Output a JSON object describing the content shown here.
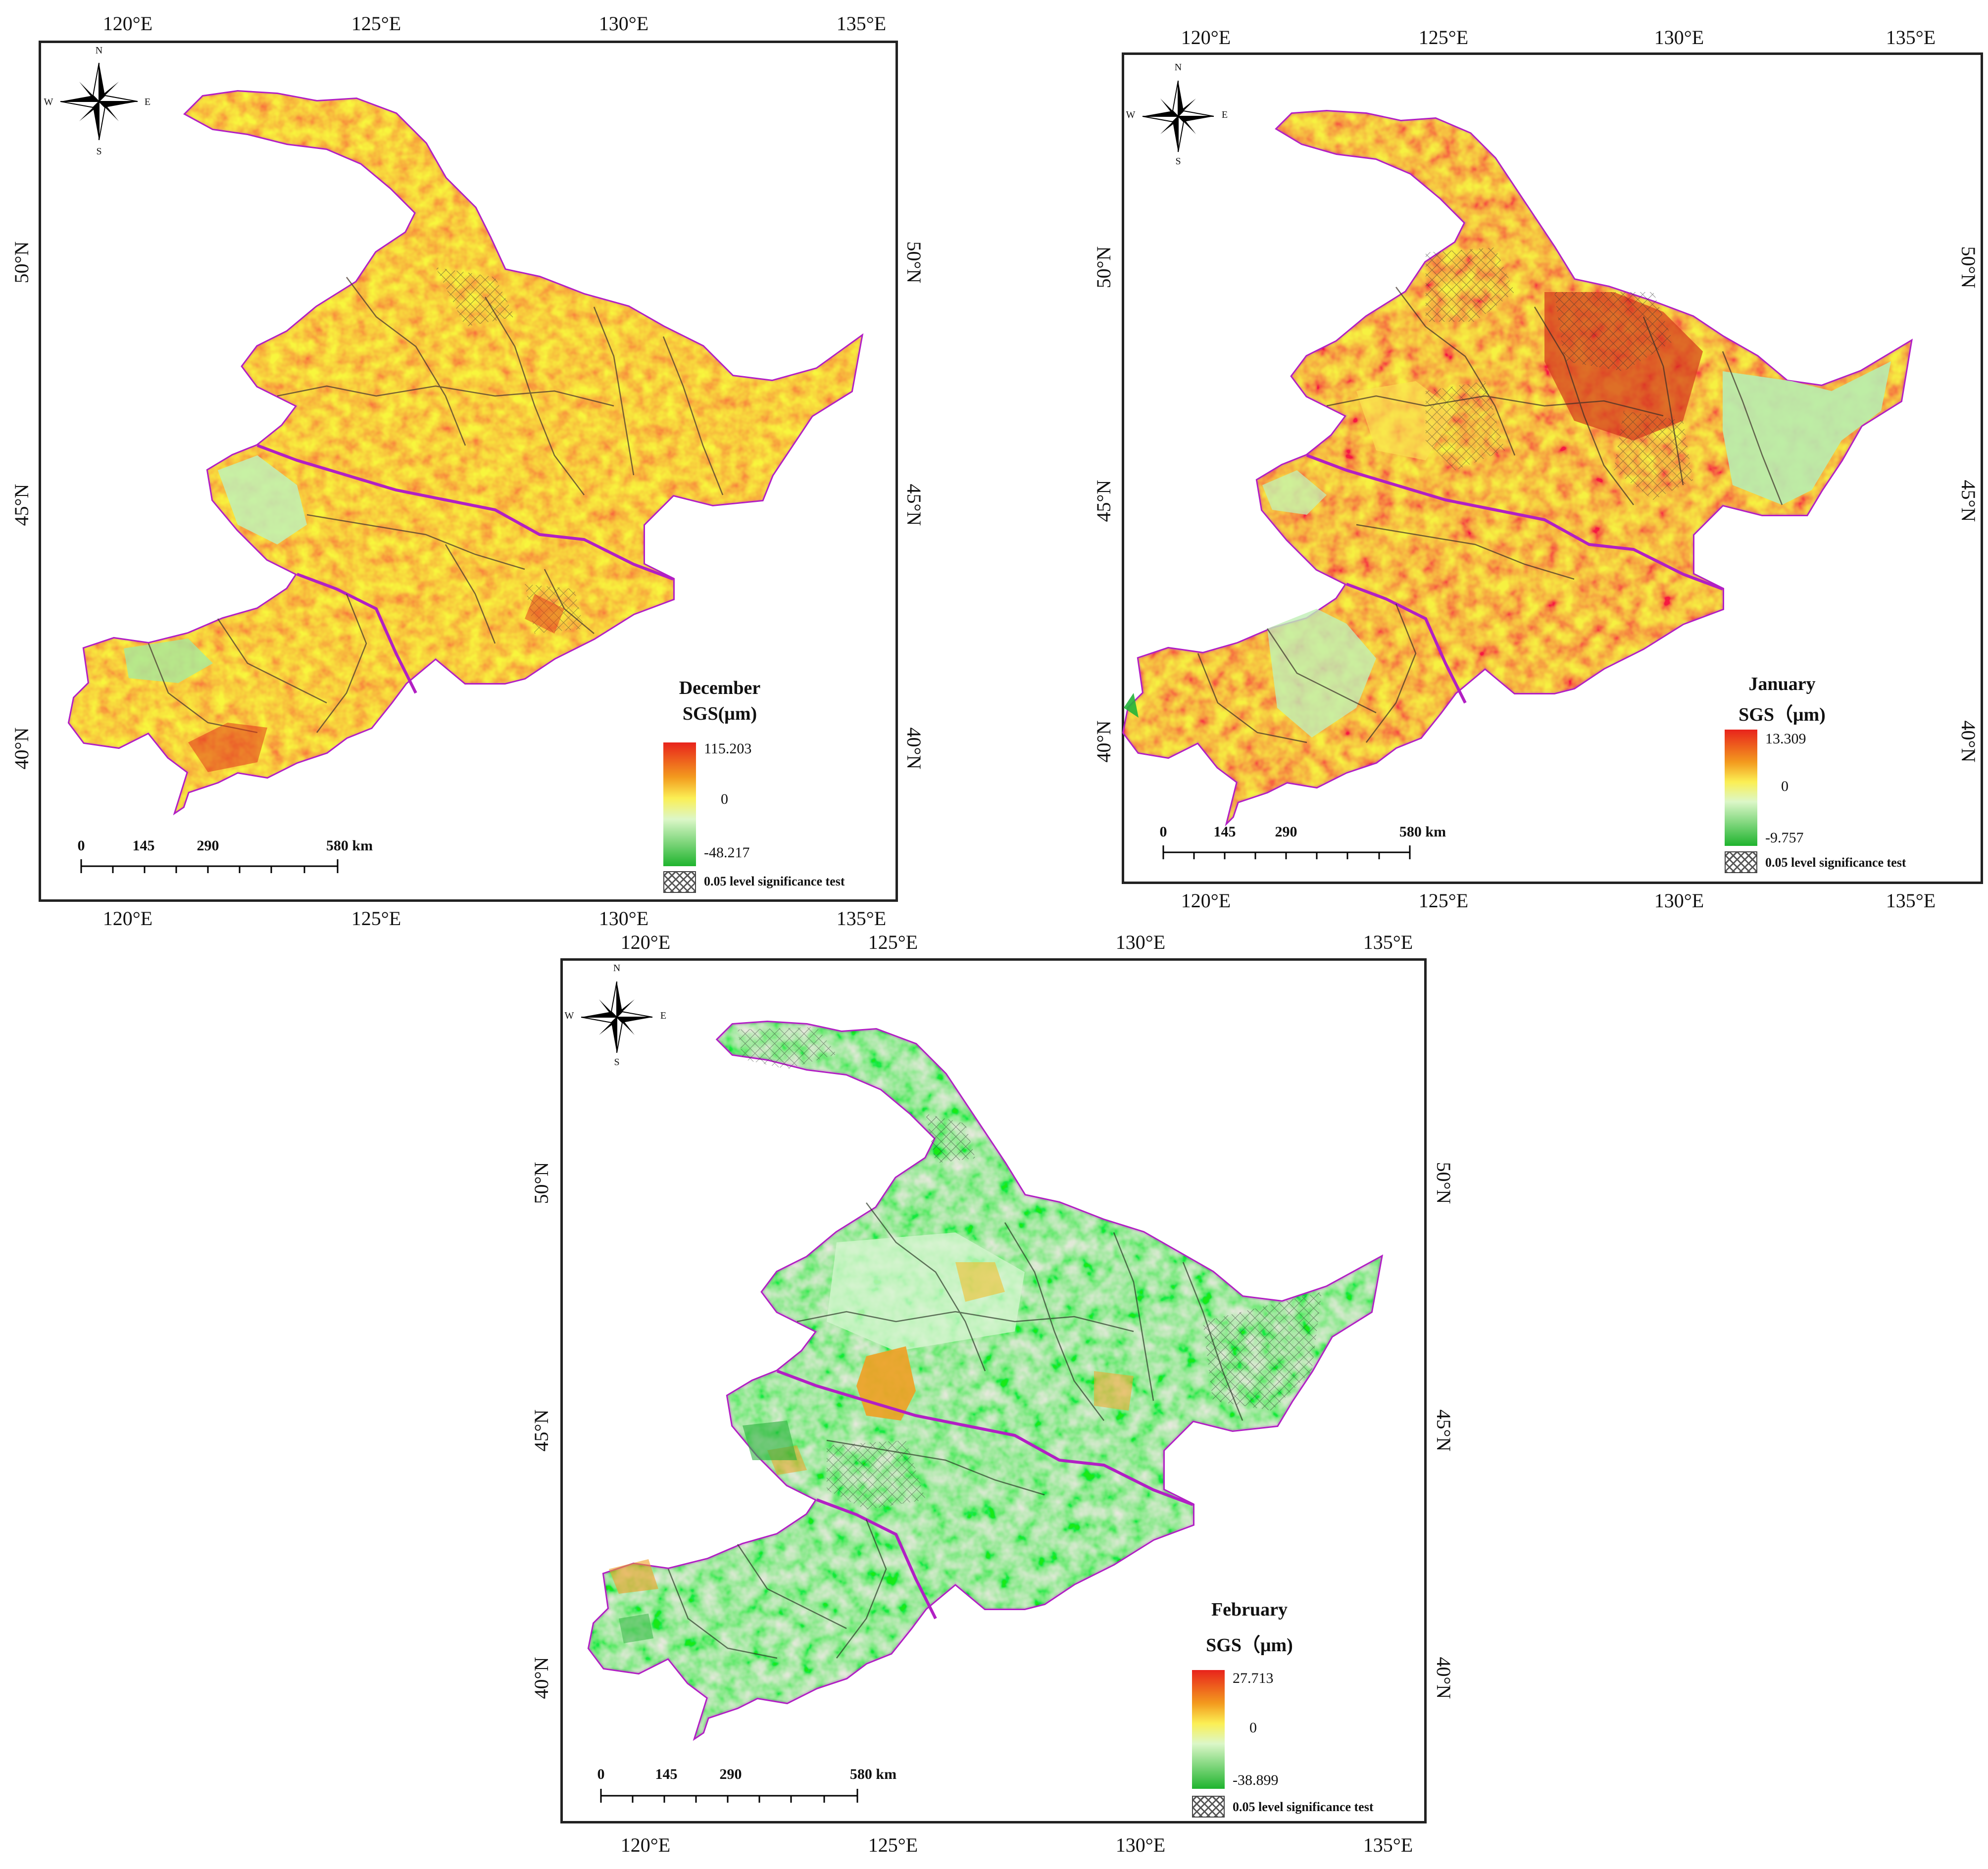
{
  "colors": {
    "positive_high": "#e8231c",
    "positive_mid": "#f3a01e",
    "neutral": "#fbf25a",
    "neutral_light": "#c9f5c1",
    "negative": "#1fb42e",
    "boundary": "#b21fc4",
    "hatch": "#555555"
  },
  "axes": {
    "lon_ticks": [
      "120°E",
      "125°E",
      "130°E",
      "135°E"
    ],
    "lat_ticks": [
      "50°N",
      "45°N",
      "40°N"
    ]
  },
  "compass": {
    "n": "N",
    "s": "S",
    "e": "E",
    "w": "W",
    "icon": "compass-rose-icon"
  },
  "scale_bar": {
    "labels": [
      "0",
      "145",
      "290",
      "580 km"
    ]
  },
  "panels": [
    {
      "id": "december",
      "legend_title": "December",
      "legend_subtitle": "SGS(μm)",
      "max": "115.203",
      "zero": "0",
      "min": "-48.217",
      "significance": "0.05 level significance test",
      "fill_pattern": "orange"
    },
    {
      "id": "january",
      "legend_title": "January",
      "legend_subtitle": "SGS（μm)",
      "max": "13.309",
      "zero": "0",
      "min": "-9.757",
      "significance": "0.05 level significance test",
      "fill_pattern": "orange-red"
    },
    {
      "id": "february",
      "legend_title": "February",
      "legend_subtitle": "SGS（μm)",
      "max": "27.713",
      "zero": "0",
      "min": "-38.899",
      "significance": "0.05 level significance test",
      "fill_pattern": "green"
    }
  ]
}
